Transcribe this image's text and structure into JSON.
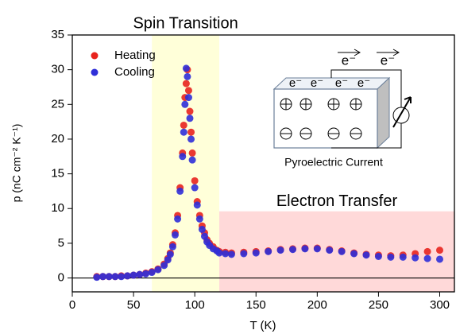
{
  "chart_data": {
    "type": "scatter",
    "xlabel": "T (K)",
    "ylabel": "p (nC cm⁻² K⁻¹)",
    "xlim": [
      0,
      312
    ],
    "ylim": [
      -2,
      35
    ],
    "xticks": [
      0,
      50,
      100,
      150,
      200,
      250,
      300
    ],
    "yticks": [
      0,
      5,
      10,
      15,
      20,
      25,
      30,
      35
    ],
    "x": [
      20,
      25,
      30,
      35,
      40,
      45,
      50,
      55,
      60,
      65,
      70,
      75,
      78,
      80,
      82,
      84,
      86,
      88,
      90,
      91,
      92,
      93,
      94,
      95,
      96,
      97,
      98,
      100,
      102,
      104,
      106,
      108,
      110,
      112,
      115,
      118,
      120,
      125,
      130,
      140,
      150,
      160,
      170,
      180,
      190,
      200,
      210,
      220,
      230,
      240,
      250,
      260,
      270,
      280,
      290,
      300
    ],
    "series": [
      {
        "name": "Heating",
        "color": "#e8231e",
        "values": [
          0.2,
          0.2,
          0.2,
          0.2,
          0.3,
          0.3,
          0.4,
          0.5,
          0.7,
          0.9,
          1.3,
          2.0,
          2.8,
          3.6,
          4.8,
          6.5,
          9,
          13,
          18,
          22,
          26,
          28,
          30,
          27,
          24,
          21,
          18,
          14,
          11,
          9,
          7.5,
          6.5,
          5.5,
          5,
          4.5,
          4,
          3.8,
          3.7,
          3.6,
          3.7,
          3.8,
          3.9,
          4.1,
          4.2,
          4.3,
          4.3,
          4.1,
          3.9,
          3.6,
          3.4,
          3.3,
          3.2,
          3.3,
          3.5,
          3.8,
          4.0
        ]
      },
      {
        "name": "Cooling",
        "color": "#2f2fd8",
        "values": [
          0.1,
          0.2,
          0.2,
          0.2,
          0.2,
          0.3,
          0.4,
          0.5,
          0.6,
          0.8,
          1.2,
          1.8,
          2.6,
          3.4,
          4.5,
          6.2,
          8.5,
          12.5,
          17.5,
          21,
          25,
          30.2,
          29,
          26,
          23,
          20,
          17,
          13,
          10.5,
          8.5,
          7,
          6,
          5.2,
          4.7,
          4.2,
          3.9,
          3.6,
          3.5,
          3.4,
          3.5,
          3.6,
          3.8,
          4.0,
          4.1,
          4.2,
          4.2,
          4.0,
          3.8,
          3.5,
          3.3,
          3.1,
          3.0,
          3.0,
          2.9,
          2.8,
          2.7
        ]
      }
    ],
    "legend": "upper left",
    "regions": [
      {
        "name": "Spin Transition",
        "xlim": [
          65,
          120
        ],
        "color": "#ffffd9"
      },
      {
        "name": "Electron Transfer",
        "xlim": [
          120,
          312
        ],
        "ylim": [
          -2,
          9.6
        ],
        "color": "#ffd9d9"
      }
    ],
    "inset": {
      "current_electrons": [
        "e⁻",
        "e⁻"
      ],
      "surface_electrons": [
        "e⁻",
        "e⁻",
        "e⁻",
        "e⁻"
      ],
      "caption": "Pyroelectric Current"
    }
  }
}
